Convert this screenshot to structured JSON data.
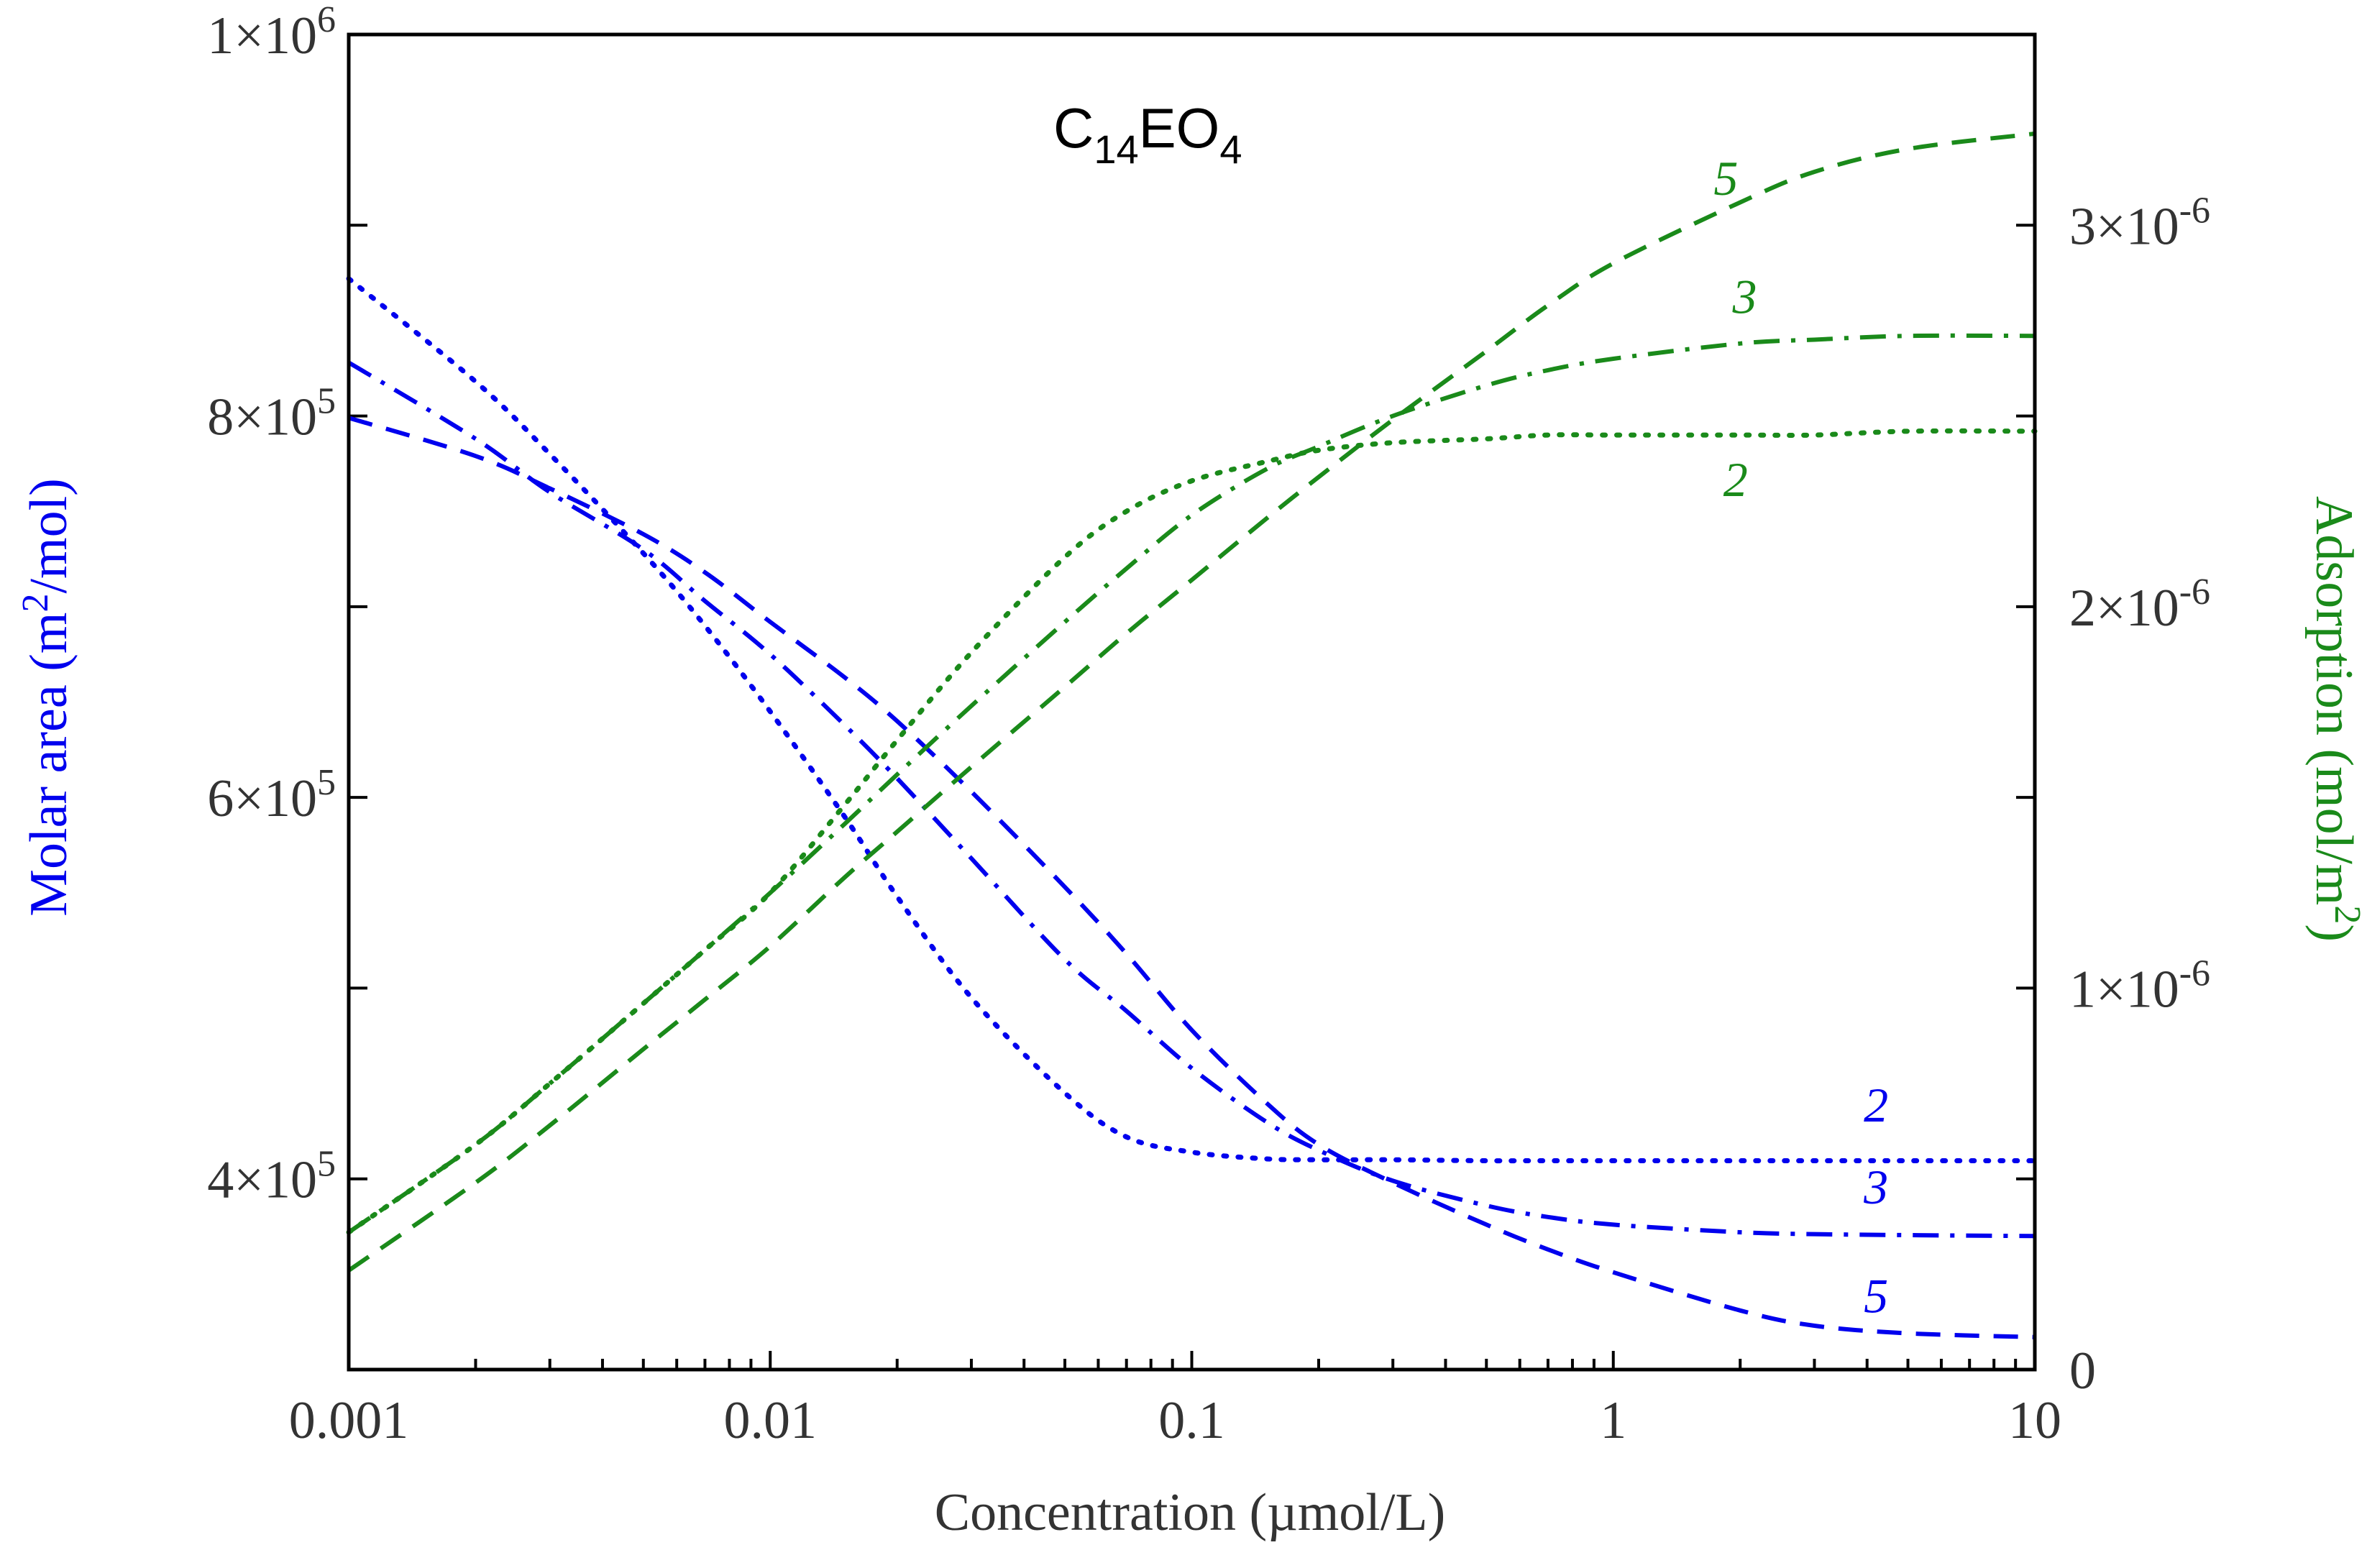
{
  "chart_data": {
    "type": "line",
    "title": "C14EO4",
    "title_parts": {
      "base1": "C",
      "sub1": "14",
      "base2": "EO",
      "sub2": "4"
    },
    "xlabel": "Concentration (µmol/L)",
    "x_scale": "log",
    "xlim": [
      0.001,
      10
    ],
    "x_ticks": [
      0.001,
      0.01,
      0.1,
      1,
      10
    ],
    "x_tick_labels": [
      "0.001",
      "0.01",
      "0.1",
      "1",
      "10"
    ],
    "y_left": {
      "label_pre": "Molar area (m",
      "label_sup": "2",
      "label_post": "/mol)",
      "color": "#0000ee",
      "ylim": [
        300000,
        1000000
      ],
      "tick_values": [
        400000,
        600000,
        800000,
        1000000
      ],
      "tick_labels": [
        {
          "mant": "4×10",
          "exp": "5"
        },
        {
          "mant": "6×10",
          "exp": "5"
        },
        {
          "mant": "8×10",
          "exp": "5"
        },
        {
          "mant": "1×10",
          "exp": "6"
        }
      ]
    },
    "y_right": {
      "label_pre": "Adsorption (mol/m",
      "label_sup": "2",
      "label_post": ")",
      "color": "#1a8a1a",
      "ylim": [
        0,
        3.5e-06
      ],
      "tick_values": [
        0,
        1e-06,
        2e-06,
        3e-06
      ],
      "tick_labels": [
        {
          "mant": "0",
          "exp": ""
        },
        {
          "mant": "1×10",
          "exp": "-6"
        },
        {
          "mant": "2×10",
          "exp": "-6"
        },
        {
          "mant": "3×10",
          "exp": "-6"
        }
      ]
    },
    "x": [
      0.001,
      0.002,
      0.003,
      0.005,
      0.007,
      0.01,
      0.015,
      0.02,
      0.03,
      0.05,
      0.07,
      0.1,
      0.15,
      0.2,
      0.3,
      0.5,
      0.7,
      1,
      2,
      3,
      5,
      10
    ],
    "series": [
      {
        "name": "Molar area 2",
        "label": "2",
        "axis": "left",
        "color": "#0000ee",
        "dash": "dotted",
        "values": [
          872000,
          818000,
          780000,
          728000,
          690000,
          645000,
          590000,
          548000,
          495000,
          445000,
          422000,
          414000,
          410500,
          410000,
          410000,
          409500,
          409500,
          409500,
          409500,
          409500,
          409500,
          409500
        ]
      },
      {
        "name": "Molar area 3",
        "label": "3",
        "axis": "left",
        "color": "#0000ee",
        "dash": "dashdot",
        "values": [
          828000,
          788000,
          760000,
          730000,
          703000,
          675000,
          638000,
          610000,
          568000,
          515000,
          488000,
          458000,
          430000,
          415000,
          399000,
          386000,
          380000,
          376000,
          372000,
          371000,
          370500,
          370000
        ]
      },
      {
        "name": "Molar area 5",
        "label": "5",
        "axis": "left",
        "color": "#0000ee",
        "dash": "dashed",
        "values": [
          799000,
          779000,
          762000,
          738000,
          718000,
          692000,
          663000,
          640000,
          603000,
          553000,
          518000,
          478000,
          440000,
          418000,
          398000,
          376000,
          363000,
          351000,
          331000,
          323000,
          319000,
          317000
        ]
      },
      {
        "name": "Adsorption 2",
        "label": "2",
        "axis": "right",
        "color": "#1a8a1a",
        "dash": "dotted",
        "values": [
          3.6e-07,
          5.9e-07,
          7.5e-07,
          9.6e-07,
          1.1e-06,
          1.25e-06,
          1.48e-06,
          1.65e-06,
          1.88e-06,
          2.13e-06,
          2.25e-06,
          2.33e-06,
          2.38e-06,
          2.41e-06,
          2.43e-06,
          2.44e-06,
          2.45e-06,
          2.45e-06,
          2.45e-06,
          2.45e-06,
          2.46e-06,
          2.46e-06
        ]
      },
      {
        "name": "Adsorption 3",
        "label": "3",
        "axis": "right",
        "color": "#1a8a1a",
        "dash": "dashdot",
        "values": [
          3.6e-07,
          5.9e-07,
          7.5e-07,
          9.6e-07,
          1.1e-06,
          1.25e-06,
          1.43e-06,
          1.56e-06,
          1.74e-06,
          1.96e-06,
          2.1e-06,
          2.24e-06,
          2.36e-06,
          2.42e-06,
          2.5e-06,
          2.58e-06,
          2.62e-06,
          2.65e-06,
          2.69e-06,
          2.7e-06,
          2.71e-06,
          2.71e-06
        ]
      },
      {
        "name": "Adsorption 5",
        "label": "5",
        "axis": "right",
        "color": "#1a8a1a",
        "dash": "dashed",
        "values": [
          2.6e-07,
          4.9e-07,
          6.4e-07,
          8.4e-07,
          9.7e-07,
          1.11e-06,
          1.29e-06,
          1.41e-06,
          1.58e-06,
          1.79e-06,
          1.93e-06,
          2.07e-06,
          2.23e-06,
          2.34e-06,
          2.49e-06,
          2.67e-06,
          2.79e-06,
          2.9e-06,
          3.06e-06,
          3.14e-06,
          3.2e-06,
          3.24e-06
        ]
      }
    ],
    "curve_labels": [
      {
        "text": "2",
        "axis": "left",
        "x": 4.2,
        "y": 430000,
        "color": "#0000ee"
      },
      {
        "text": "3",
        "axis": "left",
        "x": 4.2,
        "y": 387000,
        "color": "#0000ee"
      },
      {
        "text": "5",
        "axis": "left",
        "x": 4.2,
        "y": 330000,
        "color": "#0000ee"
      },
      {
        "text": "2",
        "axis": "right",
        "x": 1.95,
        "y": 2.29e-06,
        "color": "#1a8a1a"
      },
      {
        "text": "3",
        "axis": "right",
        "x": 2.05,
        "y": 2.77e-06,
        "color": "#1a8a1a"
      },
      {
        "text": "5",
        "axis": "right",
        "x": 1.85,
        "y": 3.08e-06,
        "color": "#1a8a1a"
      }
    ]
  }
}
